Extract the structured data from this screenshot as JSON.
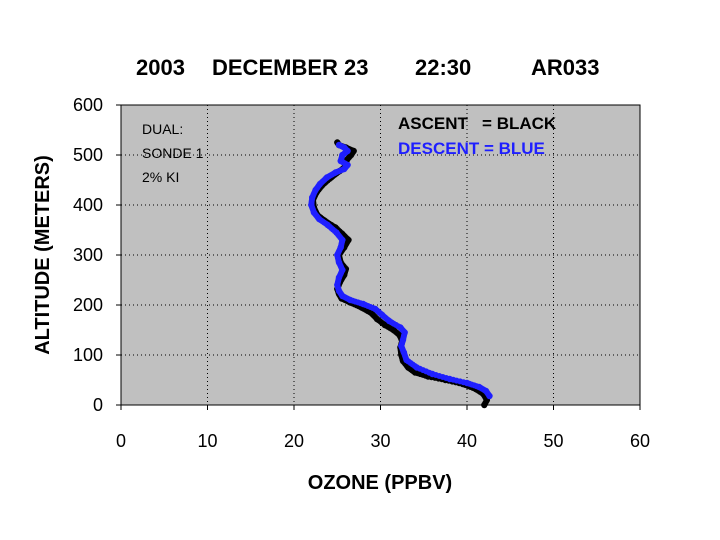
{
  "chart_data": {
    "type": "scatter",
    "title_parts": {
      "year": "2003",
      "date": "DECEMBER 23",
      "time": "22:30",
      "station": "AR033"
    },
    "xlabel": "OZONE (PPBV)",
    "ylabel": "ALTITUDE (METERS)",
    "xlim": [
      0,
      60
    ],
    "ylim": [
      0,
      600
    ],
    "x_ticks": [
      "0",
      "10",
      "20",
      "30",
      "40",
      "50",
      "60"
    ],
    "y_ticks": [
      "0",
      "100",
      "200",
      "300",
      "400",
      "500",
      "600"
    ],
    "grid": true,
    "grid_style": "dotted",
    "plot_background": "#c0c0c0",
    "annotation": [
      "DUAL:",
      "SONDE 1",
      "2% KI"
    ],
    "legend": [
      {
        "text": "ASCENT   = BLACK",
        "color": "#000000"
      },
      {
        "text": "DESCENT = BLUE",
        "color": "#1f1fff"
      }
    ],
    "series": [
      {
        "color": "#000000",
        "points": [
          [
            42.0,
            0
          ],
          [
            42.3,
            10
          ],
          [
            41.9,
            22
          ],
          [
            41.0,
            32
          ],
          [
            39.5,
            42
          ],
          [
            37.5,
            50
          ],
          [
            35.5,
            57
          ],
          [
            34.0,
            65
          ],
          [
            33.2,
            75
          ],
          [
            32.6,
            88
          ],
          [
            32.4,
            100
          ],
          [
            32.3,
            115
          ],
          [
            32.5,
            128
          ],
          [
            32.2,
            140
          ],
          [
            31.5,
            150
          ],
          [
            30.5,
            160
          ],
          [
            29.6,
            172
          ],
          [
            29.0,
            183
          ],
          [
            27.8,
            195
          ],
          [
            26.5,
            205
          ],
          [
            25.5,
            213
          ],
          [
            25.2,
            222
          ],
          [
            25.0,
            232
          ],
          [
            25.3,
            245
          ],
          [
            25.8,
            260
          ],
          [
            26.0,
            272
          ],
          [
            25.4,
            285
          ],
          [
            25.2,
            300
          ],
          [
            25.8,
            315
          ],
          [
            26.3,
            330
          ],
          [
            25.6,
            342
          ],
          [
            24.8,
            355
          ],
          [
            23.6,
            368
          ],
          [
            22.7,
            380
          ],
          [
            22.3,
            395
          ],
          [
            22.2,
            410
          ],
          [
            22.6,
            425
          ],
          [
            23.3,
            440
          ],
          [
            24.3,
            455
          ],
          [
            25.3,
            468
          ],
          [
            26.0,
            478
          ],
          [
            26.1,
            490
          ],
          [
            26.6,
            500
          ],
          [
            26.9,
            508
          ],
          [
            26.0,
            515
          ],
          [
            25.2,
            520
          ],
          [
            25.0,
            525
          ]
        ]
      },
      {
        "color": "#1f1fff",
        "points": [
          [
            42.6,
            18
          ],
          [
            42.2,
            28
          ],
          [
            41.4,
            36
          ],
          [
            40.0,
            44
          ],
          [
            38.0,
            52
          ],
          [
            36.0,
            62
          ],
          [
            34.2,
            75
          ],
          [
            33.0,
            90
          ],
          [
            32.7,
            105
          ],
          [
            32.4,
            118
          ],
          [
            32.6,
            130
          ],
          [
            32.8,
            145
          ],
          [
            32.3,
            155
          ],
          [
            31.0,
            168
          ],
          [
            30.2,
            180
          ],
          [
            29.4,
            192
          ],
          [
            28.0,
            202
          ],
          [
            26.5,
            210
          ],
          [
            25.6,
            218
          ],
          [
            25.2,
            228
          ],
          [
            25.0,
            240
          ],
          [
            25.2,
            255
          ],
          [
            25.6,
            270
          ],
          [
            25.2,
            285
          ],
          [
            25.0,
            300
          ],
          [
            25.4,
            315
          ],
          [
            25.6,
            330
          ],
          [
            24.9,
            345
          ],
          [
            23.9,
            360
          ],
          [
            22.9,
            372
          ],
          [
            22.3,
            385
          ],
          [
            22.0,
            400
          ],
          [
            22.1,
            415
          ],
          [
            22.5,
            430
          ],
          [
            23.0,
            442
          ],
          [
            23.8,
            455
          ],
          [
            24.8,
            465
          ],
          [
            25.8,
            472
          ],
          [
            26.2,
            480
          ],
          [
            25.4,
            488
          ],
          [
            25.6,
            500
          ],
          [
            26.2,
            508
          ],
          [
            25.8,
            515
          ],
          [
            25.2,
            520
          ]
        ]
      }
    ]
  }
}
